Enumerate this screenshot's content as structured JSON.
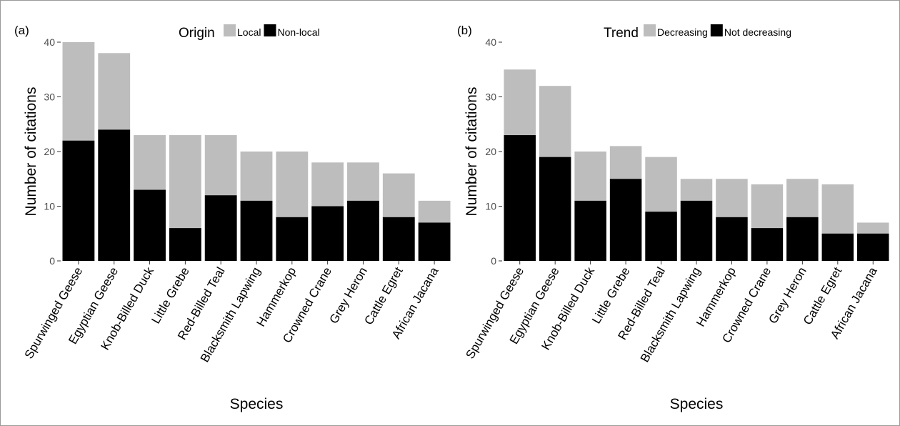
{
  "colors": {
    "light": "#bdbdbd",
    "dark": "#000000",
    "axis": "#333333"
  },
  "chart_data": [
    {
      "type": "bar",
      "stacked": true,
      "panel_tag": "(a)",
      "xlabel": "Species",
      "ylabel": "Number of citations",
      "ylim": [
        0,
        40
      ],
      "yticks": [
        "0",
        "10",
        "20",
        "30",
        "40"
      ],
      "legend": {
        "title": "Origin",
        "placement": "top",
        "entries": [
          "Local",
          "Non-local"
        ]
      },
      "categories": [
        "Spurwinged Geese",
        "Egyptian Geese",
        "Knob-Billed Duck",
        "Little Grebe",
        "Red-Billed Teal",
        "Blacksmith Lapwing",
        "Hammerkop",
        "Crowned Crane",
        "Grey Heron",
        "Cattle Egret",
        "African Jacana"
      ],
      "series": [
        {
          "name": "Non-local",
          "values": [
            22,
            24,
            13,
            6,
            12,
            11,
            8,
            10,
            11,
            8,
            7
          ]
        },
        {
          "name": "Local",
          "values": [
            18,
            14,
            10,
            17,
            11,
            9,
            12,
            8,
            7,
            8,
            4
          ]
        }
      ],
      "totals": [
        40,
        38,
        23,
        23,
        23,
        20,
        20,
        18,
        18,
        16,
        11
      ]
    },
    {
      "type": "bar",
      "stacked": true,
      "panel_tag": "(b)",
      "xlabel": "Species",
      "ylabel": "Number of citations",
      "ylim": [
        0,
        40
      ],
      "yticks": [
        "0",
        "10",
        "20",
        "30",
        "40"
      ],
      "legend": {
        "title": "Trend",
        "placement": "top",
        "entries": [
          "Decreasing",
          "Not decreasing"
        ]
      },
      "categories": [
        "Spurwinged Geese",
        "Egyptian Geese",
        "Knob-Billed Duck",
        "Little Grebe",
        "Red-Billed Teal",
        "Blacksmith Lapwing",
        "Hammerkop",
        "Crowned Crane",
        "Grey Heron",
        "Cattle Egret",
        "African Jacana"
      ],
      "series": [
        {
          "name": "Not decreasing",
          "values": [
            23,
            19,
            11,
            15,
            9,
            11,
            8,
            6,
            8,
            5,
            5
          ]
        },
        {
          "name": "Decreasing",
          "values": [
            12,
            13,
            9,
            6,
            10,
            4,
            7,
            8,
            7,
            9,
            2
          ]
        }
      ],
      "totals": [
        35,
        32,
        20,
        21,
        19,
        15,
        15,
        14,
        15,
        14,
        7
      ]
    }
  ]
}
